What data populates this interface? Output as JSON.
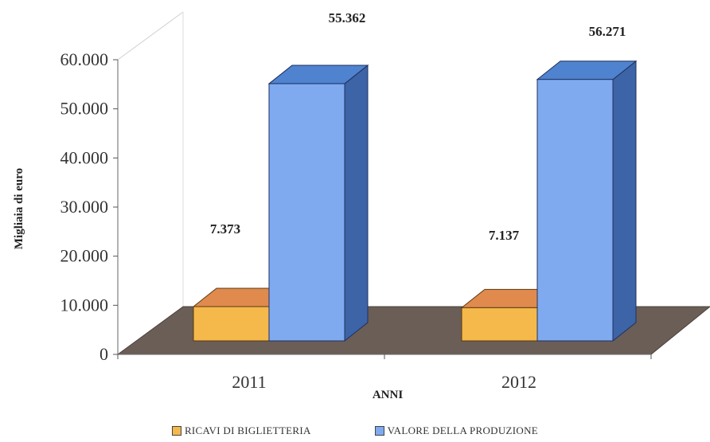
{
  "chart_data": {
    "type": "bar",
    "title": "",
    "xlabel": "ANNI",
    "ylabel": "Migliaia di euro",
    "categories": [
      "2011",
      "2012"
    ],
    "ylim": [
      0,
      60000
    ],
    "yticks": [
      0,
      10000,
      20000,
      30000,
      40000,
      50000,
      60000
    ],
    "ytick_labels": [
      "0",
      "10.000",
      "20.000",
      "30.000",
      "40.000",
      "50.000",
      "60.000"
    ],
    "grid": false,
    "legend_position": "bottom",
    "series": [
      {
        "name": "RICAVI DI BIGLIETTERIA",
        "values": [
          7373,
          7137
        ],
        "value_labels": [
          "7.373",
          "7.137"
        ],
        "color": "#f5b84a"
      },
      {
        "name": "VALORE DELLA PRODUZIONE",
        "values": [
          55362,
          56271
        ],
        "value_labels": [
          "55.362",
          "56.271"
        ],
        "color": "#7faaf0"
      }
    ]
  }
}
